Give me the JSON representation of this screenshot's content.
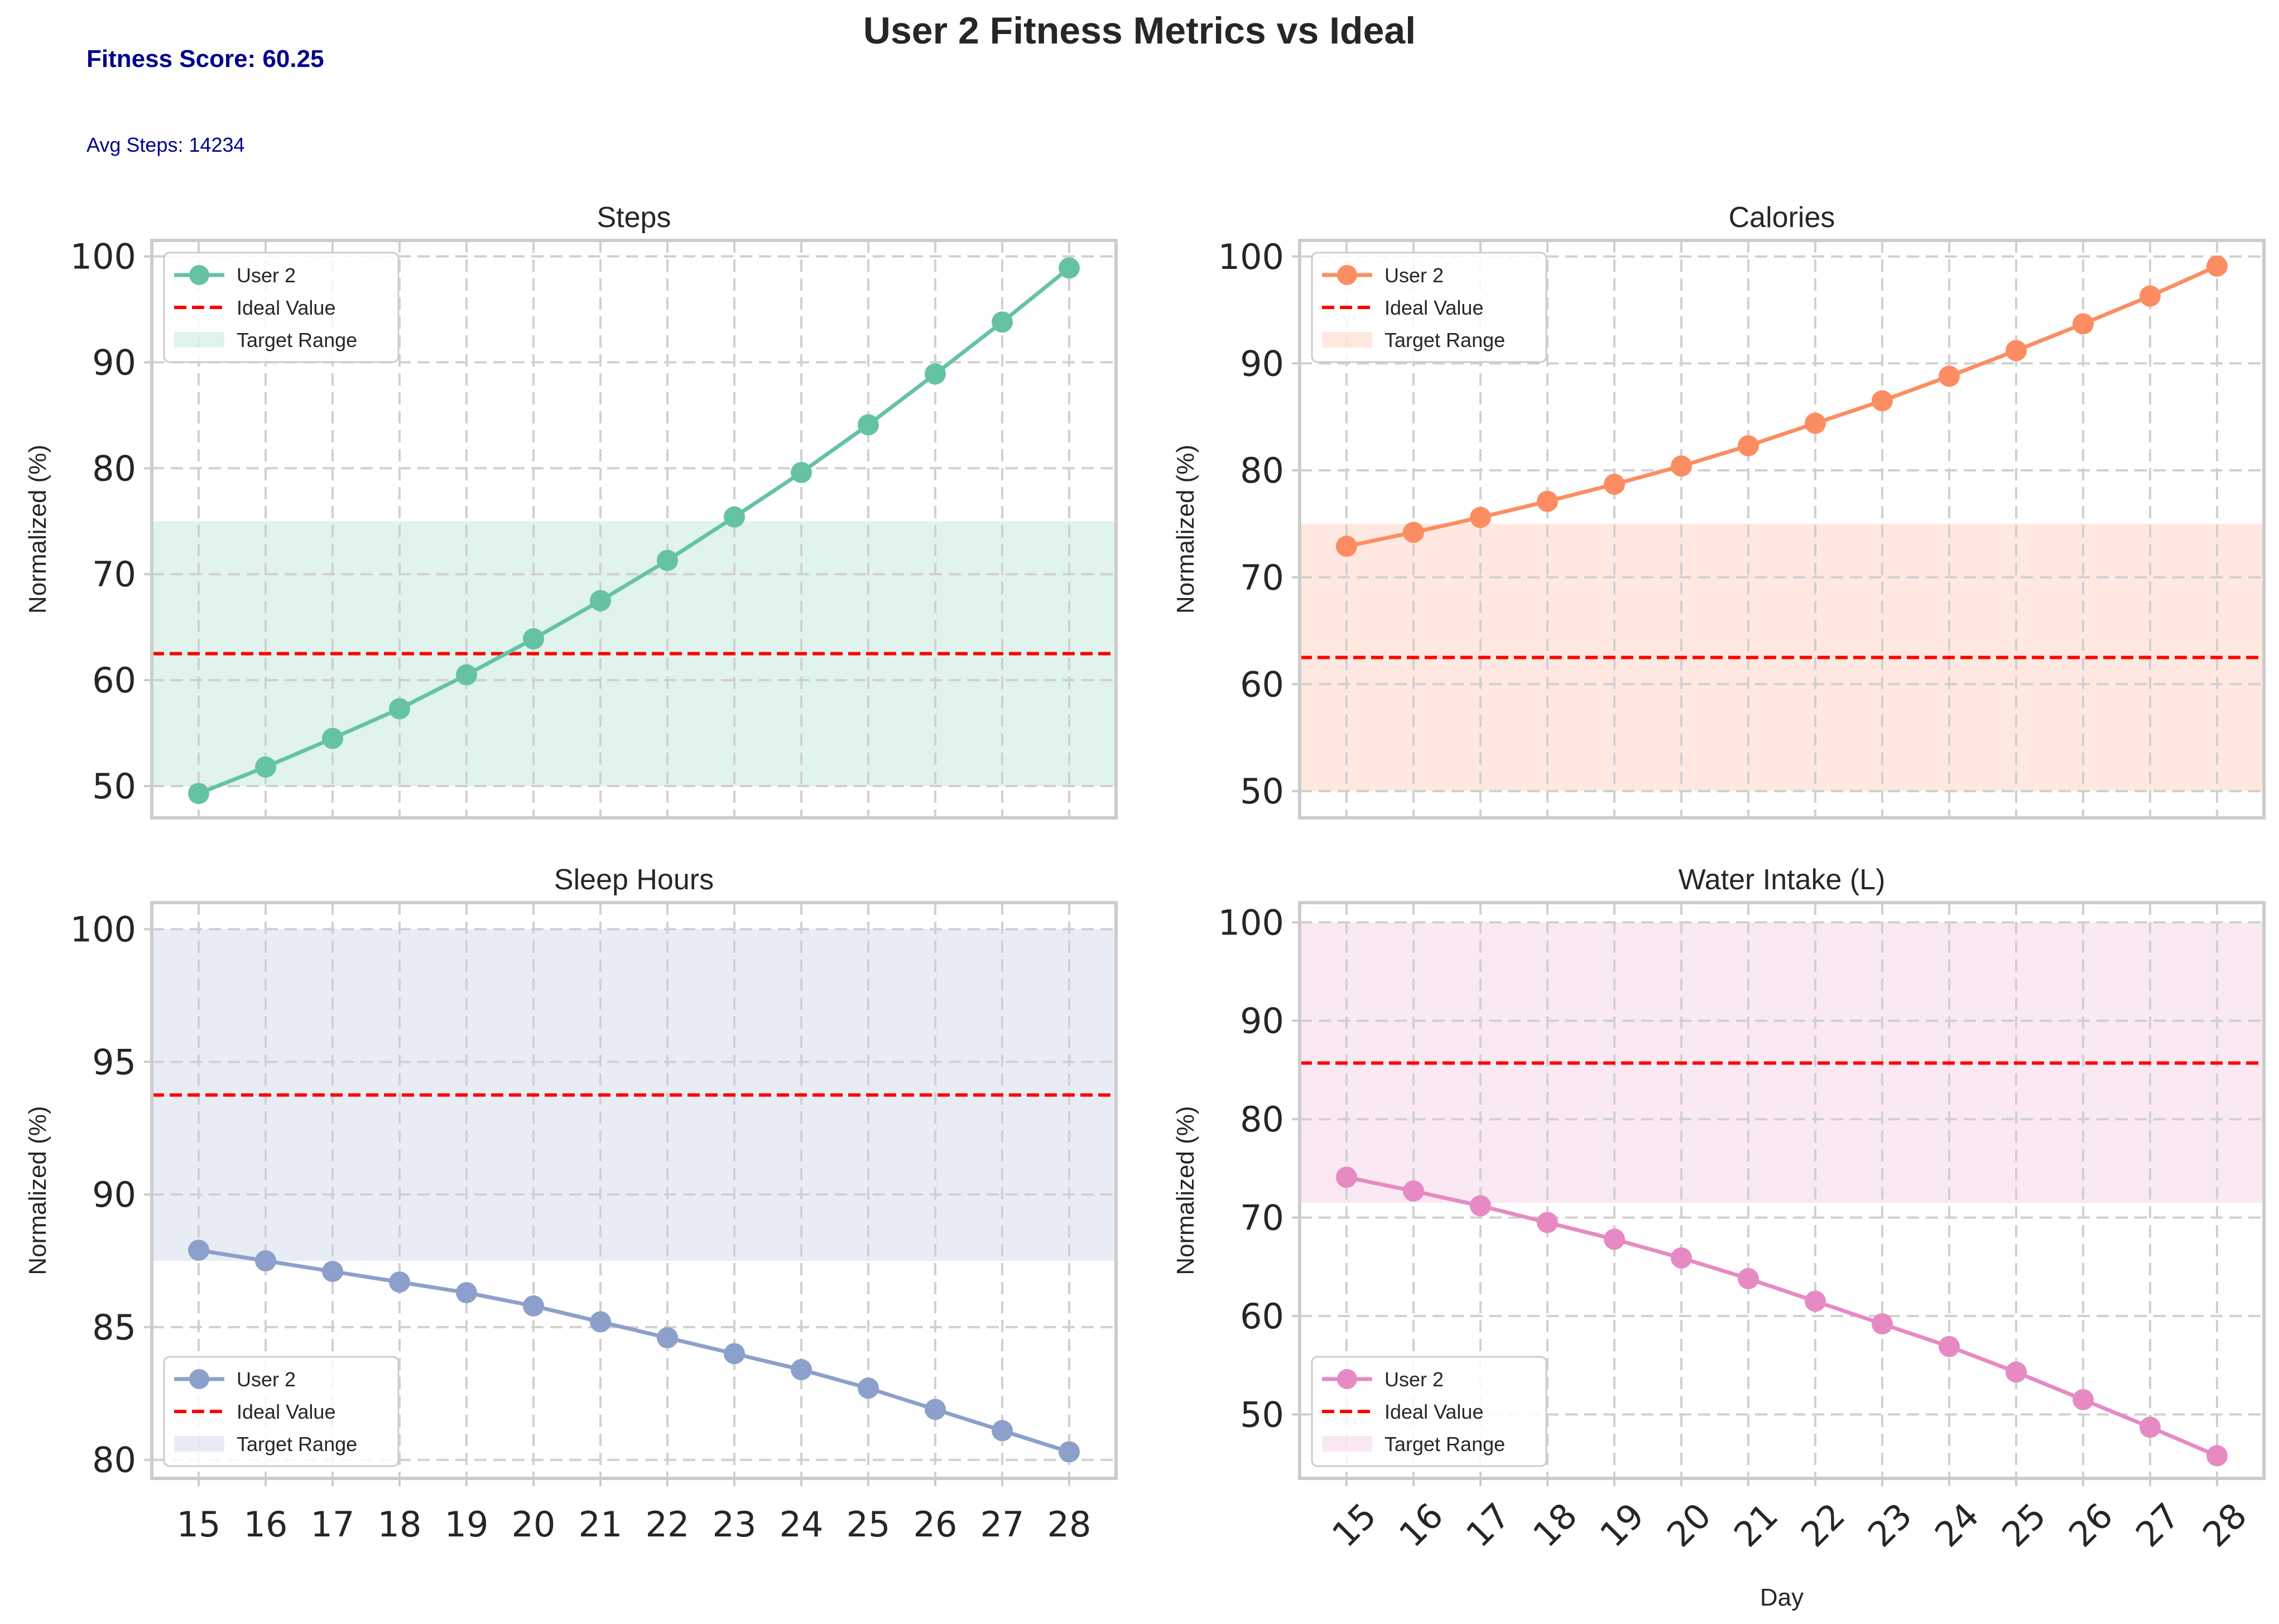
{
  "figure": {
    "title": "User 2 Fitness Metrics vs Ideal",
    "fitness_score": "Fitness Score: 60.25",
    "avg_steps": "Avg Steps: 14234",
    "colors": {
      "steps": "#66c2a5",
      "calories": "#fc8d62",
      "sleep": "#8da0cb",
      "water": "#e78ac3",
      "ideal": "#ff0000",
      "grid": "#d0d0d0"
    }
  },
  "chart_data": [
    {
      "type": "line",
      "title": "Steps",
      "xlabel": "",
      "ylabel": "Normalized (%)",
      "x": [
        15,
        16,
        17,
        18,
        19,
        20,
        21,
        22,
        23,
        24,
        25,
        26,
        27,
        28
      ],
      "series": [
        {
          "name": "User 2",
          "values": [
            49.3,
            51.8,
            54.5,
            57.3,
            60.5,
            63.9,
            67.5,
            71.3,
            75.4,
            79.6,
            84.1,
            88.9,
            93.8,
            98.9
          ]
        }
      ],
      "ideal_value": 62.5,
      "target_range": [
        50,
        75
      ],
      "ylim": [
        47,
        101.5
      ],
      "yticks": [
        50,
        60,
        70,
        80,
        90,
        100
      ],
      "legend": [
        "User 2",
        "Ideal Value",
        "Target Range"
      ],
      "legend_position": "upper-left",
      "xtick_rotation": 0,
      "show_xticks": false,
      "grid": true
    },
    {
      "type": "line",
      "title": "Calories",
      "xlabel": "",
      "ylabel": "Normalized (%)",
      "x": [
        15,
        16,
        17,
        18,
        19,
        20,
        21,
        22,
        23,
        24,
        25,
        26,
        27,
        28
      ],
      "series": [
        {
          "name": "User 2",
          "values": [
            72.9,
            74.2,
            75.6,
            77.1,
            78.7,
            80.4,
            82.3,
            84.4,
            86.5,
            88.8,
            91.2,
            93.7,
            96.3,
            99.1
          ]
        }
      ],
      "ideal_value": 62.5,
      "target_range": [
        50,
        75
      ],
      "ylim": [
        47.5,
        101.5
      ],
      "yticks": [
        50,
        60,
        70,
        80,
        90,
        100
      ],
      "legend": [
        "User 2",
        "Ideal Value",
        "Target Range"
      ],
      "legend_position": "upper-left",
      "xtick_rotation": 0,
      "show_xticks": false,
      "grid": true
    },
    {
      "type": "line",
      "title": "Sleep Hours",
      "xlabel": "",
      "ylabel": "Normalized (%)",
      "x": [
        15,
        16,
        17,
        18,
        19,
        20,
        21,
        22,
        23,
        24,
        25,
        26,
        27,
        28
      ],
      "series": [
        {
          "name": "User 2",
          "values": [
            87.9,
            87.5,
            87.1,
            86.7,
            86.3,
            85.8,
            85.2,
            84.6,
            84.0,
            83.4,
            82.7,
            81.9,
            81.1,
            80.3
          ]
        }
      ],
      "ideal_value": 93.75,
      "target_range": [
        87.5,
        100
      ],
      "ylim": [
        79.3,
        101
      ],
      "yticks": [
        80,
        85,
        90,
        95,
        100
      ],
      "legend": [
        "User 2",
        "Ideal Value",
        "Target Range"
      ],
      "legend_position": "lower-left",
      "xtick_rotation": 0,
      "show_xticks": true,
      "grid": true
    },
    {
      "type": "line",
      "title": "Water Intake (L)",
      "xlabel": "Day",
      "ylabel": "Normalized (%)",
      "x": [
        15,
        16,
        17,
        18,
        19,
        20,
        21,
        22,
        23,
        24,
        25,
        26,
        27,
        28
      ],
      "series": [
        {
          "name": "User 2",
          "values": [
            74.1,
            72.7,
            71.2,
            69.5,
            67.8,
            65.9,
            63.8,
            61.5,
            59.2,
            56.9,
            54.3,
            51.5,
            48.7,
            45.8
          ]
        }
      ],
      "ideal_value": 85.7,
      "target_range": [
        71.5,
        100
      ],
      "ylim": [
        43.5,
        102
      ],
      "yticks": [
        50,
        60,
        70,
        80,
        90,
        100
      ],
      "legend": [
        "User 2",
        "Ideal Value",
        "Target Range"
      ],
      "legend_position": "lower-left",
      "xtick_rotation": -45,
      "show_xticks": true,
      "grid": true
    }
  ]
}
